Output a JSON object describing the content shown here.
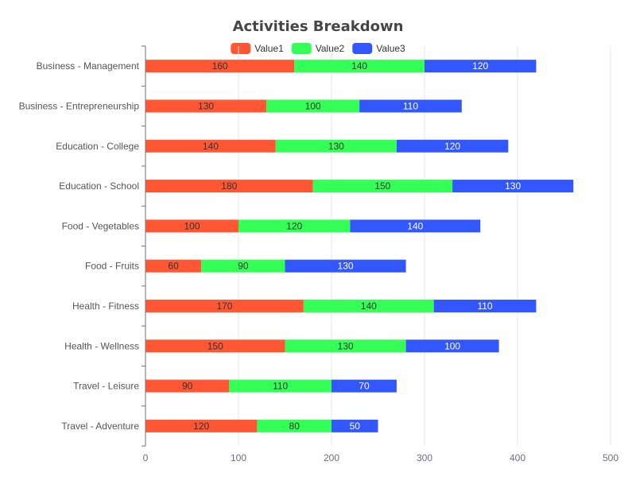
{
  "chart_data": {
    "type": "bar",
    "orientation": "horizontal",
    "stacked": true,
    "title": "Activities Breakdown",
    "categories": [
      "Business - Management",
      "Business - Entrepreneurship",
      "Education - College",
      "Education - School",
      "Food - Vegetables",
      "Food - Fruits",
      "Health - Fitness",
      "Health - Wellness",
      "Travel - Leisure",
      "Travel - Adventure"
    ],
    "series": [
      {
        "name": "Value1",
        "color": "#ff5733",
        "label_color": "#333333",
        "values": [
          160,
          130,
          140,
          180,
          100,
          60,
          170,
          150,
          90,
          120
        ]
      },
      {
        "name": "Value2",
        "color": "#33ff57",
        "label_color": "#333333",
        "values": [
          140,
          100,
          130,
          150,
          120,
          90,
          140,
          130,
          110,
          80
        ]
      },
      {
        "name": "Value3",
        "color": "#3357ff",
        "label_color": "#ffffff",
        "values": [
          120,
          110,
          120,
          130,
          140,
          130,
          110,
          100,
          70,
          50
        ]
      }
    ],
    "xlim": [
      0,
      500
    ],
    "xticks": [
      0,
      100,
      200,
      300,
      400,
      500
    ],
    "grid": true,
    "legend": "top-center"
  }
}
